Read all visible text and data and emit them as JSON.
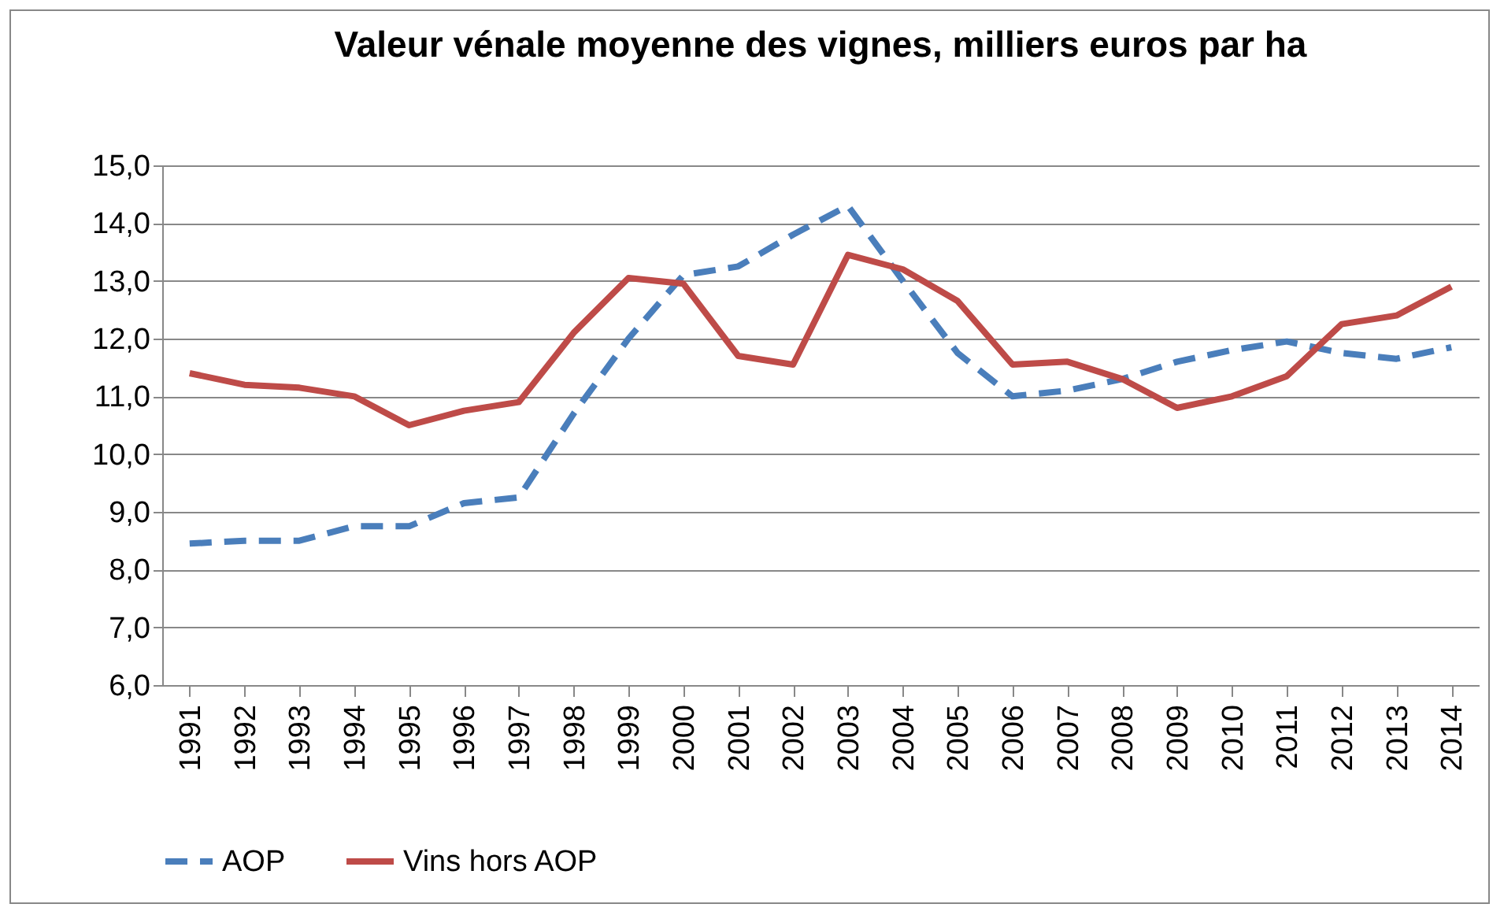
{
  "chart_data": {
    "type": "line",
    "title": "Valeur vénale moyenne des vignes, milliers euros par ha",
    "categories": [
      "1991",
      "1992",
      "1993",
      "1994",
      "1995",
      "1996",
      "1997",
      "1998",
      "1999",
      "2000",
      "2001",
      "2002",
      "2003",
      "2004",
      "2005",
      "2006",
      "2007",
      "2008",
      "2009",
      "2010",
      "2011",
      "2012",
      "2013",
      "2014"
    ],
    "series": [
      {
        "name": "AOP",
        "color": "#4a7ebb",
        "line_style": "dashed",
        "values": [
          8.45,
          8.5,
          8.5,
          8.75,
          8.75,
          9.15,
          9.25,
          10.7,
          12.0,
          13.1,
          13.25,
          13.8,
          14.3,
          13.0,
          11.75,
          11.0,
          11.1,
          11.3,
          11.6,
          11.8,
          11.95,
          11.75,
          11.65,
          11.85
        ]
      },
      {
        "name": "Vins hors AOP",
        "color": "#be4b48",
        "line_style": "solid",
        "values": [
          11.4,
          11.2,
          11.15,
          11.0,
          10.5,
          10.75,
          10.9,
          12.1,
          13.05,
          12.95,
          11.7,
          11.55,
          13.45,
          13.2,
          12.65,
          11.55,
          11.6,
          11.3,
          10.8,
          11.0,
          11.35,
          12.25,
          12.4,
          12.9
        ]
      }
    ],
    "ylim": [
      6,
      15
    ],
    "yticks": [
      {
        "value": 6,
        "label": "6,0"
      },
      {
        "value": 7,
        "label": "7,0"
      },
      {
        "value": 8,
        "label": "8,0"
      },
      {
        "value": 9,
        "label": "9,0"
      },
      {
        "value": 10,
        "label": "10,0"
      },
      {
        "value": 11,
        "label": "11,0"
      },
      {
        "value": 12,
        "label": "12,0"
      },
      {
        "value": 13,
        "label": "13,0"
      },
      {
        "value": 14,
        "label": "14,0"
      },
      {
        "value": 15,
        "label": "15,0"
      }
    ],
    "grid": "y",
    "legend": "bottom",
    "marker": "none"
  }
}
